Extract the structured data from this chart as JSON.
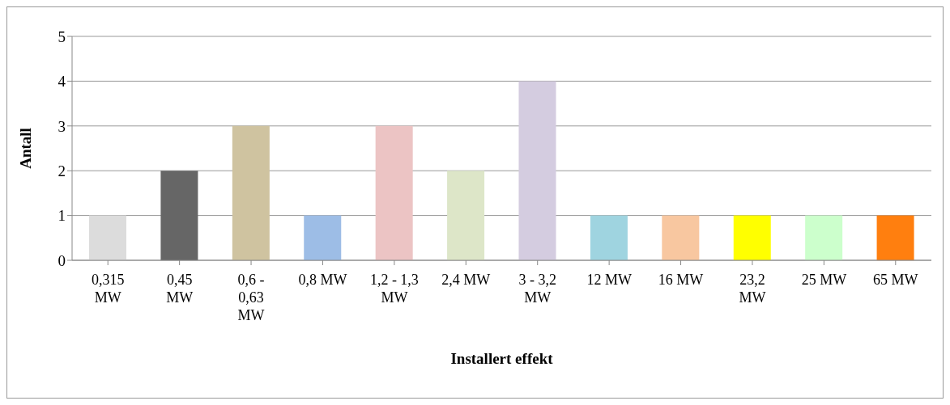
{
  "chart_data": {
    "type": "bar",
    "xlabel": "Installert effekt",
    "ylabel": "Antall",
    "categories": [
      "0,315 MW",
      "0,45 MW",
      "0,6 - 0,63 MW",
      "0,8 MW",
      "1,2 - 1,3 MW",
      "2,4 MW",
      "3 - 3,2 MW",
      "12 MW",
      "16 MW",
      "23,2 MW",
      "25 MW",
      "65 MW"
    ],
    "values": [
      1,
      2,
      3,
      1,
      3,
      2,
      4,
      1,
      1,
      1,
      1,
      1
    ],
    "colors": [
      "#dcdcdc",
      "#666666",
      "#cfc3a0",
      "#9dbde6",
      "#ecc4c4",
      "#dde6c8",
      "#d4cce0",
      "#9fd4e0",
      "#f8c7a0",
      "#ffff00",
      "#ccffcc",
      "#ff7f0f"
    ],
    "ylim": [
      0,
      5
    ],
    "yticks": [
      0,
      1,
      2,
      3,
      4,
      5
    ],
    "grid": "y"
  }
}
